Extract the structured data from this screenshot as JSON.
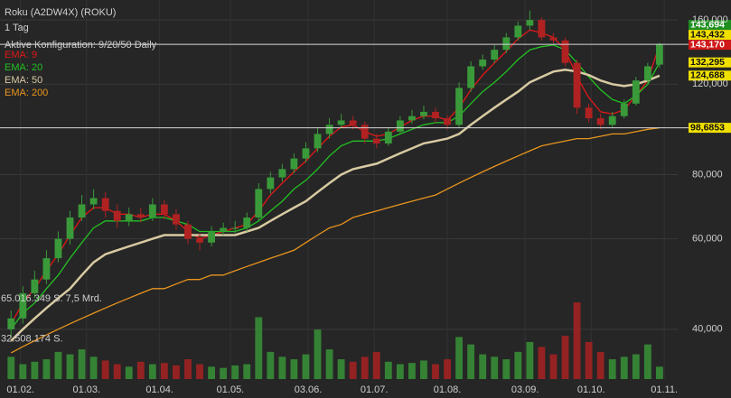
{
  "chart_data": {
    "type": "candlestick",
    "title": "Roku (A2DW4X) (ROKU)",
    "subtitle": "1 Tag",
    "config": "Aktive Konfiguration: 9/20/50 Daily",
    "log_scale": true,
    "grid": true,
    "up_color": "#3a9a3a",
    "down_color": "#b02222",
    "ylim": [
      32,
      175
    ],
    "yticks": [
      {
        "value": 40,
        "label": "40,000"
      },
      {
        "value": 60,
        "label": "60,000"
      },
      {
        "value": 80,
        "label": "80,000"
      },
      {
        "value": 120,
        "label": "120,000"
      },
      {
        "value": 160,
        "label": "160,000"
      }
    ],
    "xlim": [
      23.3,
      310.7
    ],
    "xticks": [
      {
        "value": 32,
        "label": "01.02."
      },
      {
        "value": 60,
        "label": "01.03."
      },
      {
        "value": 91,
        "label": "01.04."
      },
      {
        "value": 121,
        "label": "01.05."
      },
      {
        "value": 154,
        "label": "03.06."
      },
      {
        "value": 182,
        "label": "01.07."
      },
      {
        "value": 213,
        "label": "01.08."
      },
      {
        "value": 246,
        "label": "03.09."
      },
      {
        "value": 274,
        "label": "01.10."
      },
      {
        "value": 305,
        "label": "01.11."
      }
    ],
    "x": [
      28,
      33,
      38,
      43,
      48,
      53,
      58,
      63,
      68,
      73,
      78,
      83,
      88,
      93,
      98,
      103,
      108,
      113,
      118,
      123,
      128,
      133,
      138,
      143,
      148,
      153,
      158,
      163,
      168,
      173,
      178,
      183,
      188,
      193,
      198,
      203,
      208,
      213,
      218,
      223,
      228,
      233,
      238,
      243,
      248,
      253,
      258,
      263,
      268,
      273,
      278,
      283,
      288,
      293,
      298,
      303
    ],
    "open": [
      40,
      42,
      47,
      50,
      55,
      60,
      66,
      70,
      72,
      68,
      65,
      67,
      66,
      70,
      67,
      64,
      60,
      59,
      62,
      63,
      63,
      66,
      75,
      79,
      82,
      86,
      90,
      96,
      100,
      102,
      100,
      94,
      92,
      97,
      102,
      104,
      106,
      103,
      100,
      118,
      130,
      134,
      140,
      148,
      156,
      160,
      148,
      146,
      132,
      108,
      103,
      100,
      104,
      110,
      122,
      131
    ],
    "high": [
      43.5,
      48.5,
      52,
      57,
      62,
      68,
      73,
      75,
      74,
      70,
      69,
      69,
      72,
      71.5,
      68.5,
      65,
      61.5,
      63.5,
      64.5,
      65,
      67.5,
      77,
      81,
      84,
      88,
      92.5,
      98.5,
      103,
      105,
      104,
      101.5,
      96,
      99,
      104,
      107,
      109,
      108,
      104.5,
      121,
      133,
      137,
      143,
      151,
      159,
      167,
      162,
      151,
      148,
      134,
      110,
      105,
      106,
      112,
      124,
      132,
      144.5
    ],
    "low": [
      38.5,
      41,
      46,
      49,
      54,
      58.5,
      65,
      68.5,
      66,
      63,
      63.5,
      64.5,
      65,
      65.5,
      62.5,
      58.5,
      57,
      58,
      61,
      61.5,
      62,
      65,
      73.5,
      77.5,
      80.5,
      84.5,
      88.5,
      94,
      98.5,
      98,
      92,
      90,
      91,
      96,
      100.5,
      102.5,
      101,
      98,
      99,
      116,
      128,
      132,
      138,
      146,
      153,
      146,
      144,
      130,
      105,
      101,
      98,
      99,
      103,
      109,
      120,
      129
    ],
    "close": [
      42,
      47,
      50,
      55,
      60,
      66,
      70,
      72,
      68,
      65,
      67,
      66,
      70,
      67,
      64,
      60,
      59,
      62,
      63,
      63,
      66,
      75,
      79,
      82,
      86,
      90,
      96,
      100,
      102,
      100,
      94,
      92,
      97,
      102,
      104,
      106,
      103,
      100,
      118,
      130,
      134,
      140,
      148,
      156,
      160,
      148,
      146,
      132,
      108,
      103,
      100,
      104,
      110,
      122,
      130,
      143.694
    ],
    "volume": [
      18000000,
      12000000,
      14000000,
      16000000,
      22000000,
      20000000,
      24000000,
      18000000,
      15000000,
      12000000,
      10000000,
      14000000,
      12000000,
      13000000,
      11000000,
      16000000,
      12000000,
      10000000,
      9000000,
      11000000,
      12000000,
      50000000,
      22000000,
      18000000,
      16000000,
      20000000,
      40000000,
      24000000,
      16000000,
      14000000,
      18000000,
      22000000,
      14000000,
      12000000,
      13000000,
      15000000,
      12000000,
      16000000,
      34000000,
      28000000,
      20000000,
      18000000,
      16000000,
      22000000,
      30000000,
      26000000,
      20000000,
      35000000,
      62000000,
      30000000,
      22000000,
      16000000,
      18000000,
      20000000,
      28000000,
      10000000
    ],
    "volume_lim": [
      0,
      73000000
    ],
    "volume_ticks": [
      {
        "value": 32508174,
        "label": "32.508.174 S."
      },
      {
        "value": 65016349,
        "label": "65.016.349 S. 7,5 Mrd."
      }
    ],
    "series": [
      {
        "name": "EMA: 9",
        "color": "#e01818",
        "values": [
          41,
          45,
          48,
          52,
          56,
          61,
          66,
          69,
          69,
          67,
          67,
          66,
          67,
          67,
          65,
          62,
          60,
          61,
          62,
          63,
          64,
          68,
          73,
          77,
          81,
          85,
          90,
          95,
          99,
          100,
          97,
          95,
          96,
          99,
          102,
          104,
          104,
          102,
          108,
          117,
          125,
          132,
          139,
          147,
          153,
          151,
          148,
          140,
          124,
          113,
          106,
          105,
          107,
          114,
          122,
          143.17
        ]
      },
      {
        "name": "EMA: 20",
        "color": "#22c022",
        "values": [
          40,
          43,
          45,
          48,
          51,
          55,
          59,
          63,
          65,
          65,
          65,
          65,
          66,
          66,
          65,
          64,
          62,
          62,
          62,
          62,
          63,
          65,
          68,
          71,
          75,
          78,
          82,
          87,
          91,
          93,
          93,
          93,
          94,
          96,
          98,
          100,
          101,
          101,
          104,
          110,
          116,
          121,
          127,
          134,
          140,
          142,
          143,
          140,
          132,
          124,
          117,
          112,
          110,
          114,
          120,
          132.295
        ]
      },
      {
        "name": "EMA: 50",
        "color": "#d8caa2",
        "values": [
          38,
          40,
          42,
          44,
          46,
          48,
          51,
          54,
          56,
          57,
          58,
          59,
          60,
          61,
          61,
          61,
          61,
          61,
          61,
          61,
          62,
          63,
          65,
          67,
          69,
          71,
          74,
          77,
          80,
          82,
          83,
          84,
          86,
          88,
          90,
          92,
          93,
          94,
          96,
          100,
          104,
          108,
          112,
          116,
          121,
          124,
          127,
          128,
          127,
          125,
          122,
          120,
          119,
          120,
          122,
          124.688
        ]
      },
      {
        "name": "EMA: 200",
        "color": "#e8951e",
        "values": [
          36,
          37,
          38,
          39,
          40,
          41,
          42,
          43,
          44,
          45,
          46,
          47,
          48,
          48,
          49,
          50,
          50,
          51,
          51,
          52,
          53,
          54,
          55,
          56,
          57,
          59,
          61,
          63,
          64,
          66,
          67,
          68,
          69,
          70,
          71,
          72,
          73,
          75,
          77,
          79,
          81,
          83,
          85,
          87,
          89,
          91,
          92,
          93,
          94,
          94,
          95,
          96,
          96,
          97,
          98,
          98.6853
        ]
      }
    ],
    "price_markers": [
      {
        "value": 143.694,
        "label": "143,694",
        "color": "#1f8f1f",
        "line": false
      },
      {
        "value": 143.432,
        "label": "143,432",
        "color": "#f0e000",
        "line": true
      },
      {
        "value": 143.17,
        "label": "143,170",
        "color": "#d01818",
        "line": false
      },
      {
        "value": 132.295,
        "label": "132,295",
        "color": "#f0e000",
        "line": false
      },
      {
        "value": 124.688,
        "label": "124,688",
        "color": "#f0e000",
        "line": false
      },
      {
        "value": 98.6853,
        "label": "98,6853",
        "color": "#f0e000",
        "line": true
      }
    ]
  }
}
